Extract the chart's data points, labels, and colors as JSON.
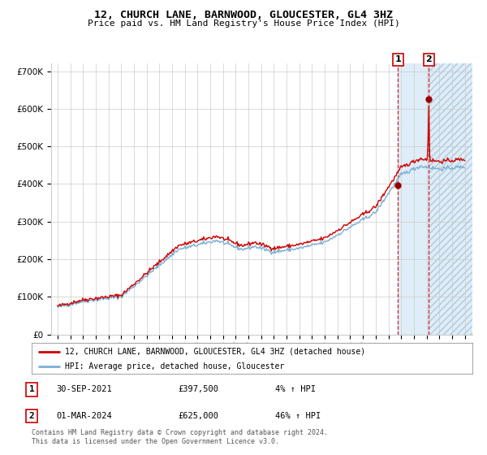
{
  "title": "12, CHURCH LANE, BARNWOOD, GLOUCESTER, GL4 3HZ",
  "subtitle": "Price paid vs. HM Land Registry's House Price Index (HPI)",
  "legend_line1": "12, CHURCH LANE, BARNWOOD, GLOUCESTER, GL4 3HZ (detached house)",
  "legend_line2": "HPI: Average price, detached house, Gloucester",
  "transaction1_date": "30-SEP-2021",
  "transaction1_price": "£397,500",
  "transaction1_hpi": "4% ↑ HPI",
  "transaction2_date": "01-MAR-2024",
  "transaction2_price": "£625,000",
  "transaction2_hpi": "46% ↑ HPI",
  "footer": "Contains HM Land Registry data © Crown copyright and database right 2024.\nThis data is licensed under the Open Government Licence v3.0.",
  "hpi_color": "#7ab0d4",
  "price_color": "#cc0000",
  "marker_color": "#990000",
  "background_color": "#ffffff",
  "grid_color": "#cccccc",
  "transaction1_x": 2021.75,
  "transaction2_x": 2024.17,
  "transaction1_y": 397500,
  "transaction2_y": 625000,
  "ylim": [
    0,
    720000
  ],
  "xlim_start": 1994.5,
  "xlim_end": 2027.6,
  "yticks": [
    0,
    100000,
    200000,
    300000,
    400000,
    500000,
    600000,
    700000
  ],
  "ytick_labels": [
    "£0",
    "£100K",
    "£200K",
    "£300K",
    "£400K",
    "£500K",
    "£600K",
    "£700K"
  ],
  "xticks": [
    1995,
    1996,
    1997,
    1998,
    1999,
    2000,
    2001,
    2002,
    2003,
    2004,
    2005,
    2006,
    2007,
    2008,
    2009,
    2010,
    2011,
    2012,
    2013,
    2014,
    2015,
    2016,
    2017,
    2018,
    2019,
    2020,
    2021,
    2022,
    2023,
    2024,
    2025,
    2026,
    2027
  ]
}
